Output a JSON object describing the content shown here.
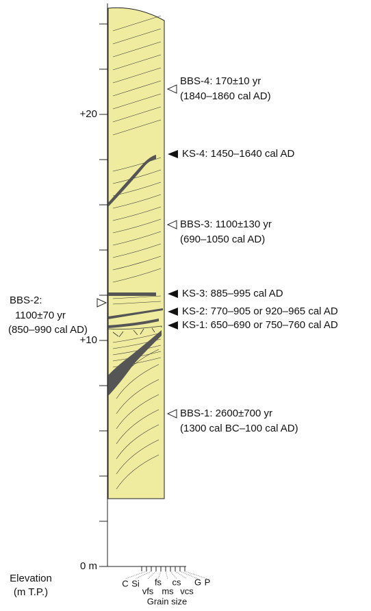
{
  "elevation_axis": {
    "ticks": [
      "+20",
      "+10",
      "0 m"
    ],
    "title": [
      "Elevation",
      "(m T.P.)"
    ]
  },
  "grain_size_axis": {
    "labels": [
      "C",
      "Si",
      "vfs",
      "fs",
      "ms",
      "cs",
      "vcs",
      "G",
      "P"
    ],
    "title": "Grain size"
  },
  "samples": [
    {
      "lines": [
        "BBS-4: 170±10 yr",
        "(1840–1860 cal AD)"
      ]
    },
    {
      "lines": [
        "KS-4: 1450–1640 cal AD"
      ]
    },
    {
      "lines": [
        "BBS-3: 1100±130 yr",
        "(690–1050 cal AD)"
      ]
    },
    {
      "lines": [
        "KS-3: 885–995 cal AD"
      ]
    },
    {
      "lines": [
        "KS-2: 770–905 or 920–965 cal AD"
      ]
    },
    {
      "lines": [
        "KS-1: 650–690 or 750–760 cal AD"
      ]
    },
    {
      "lines": [
        "BBS-1: 2600±700 yr",
        "(1300 cal BC–100 cal AD)"
      ]
    },
    {
      "lines": [
        "BBS-2:",
        "1100±70 yr",
        "(850–990 cal AD)"
      ]
    }
  ]
}
